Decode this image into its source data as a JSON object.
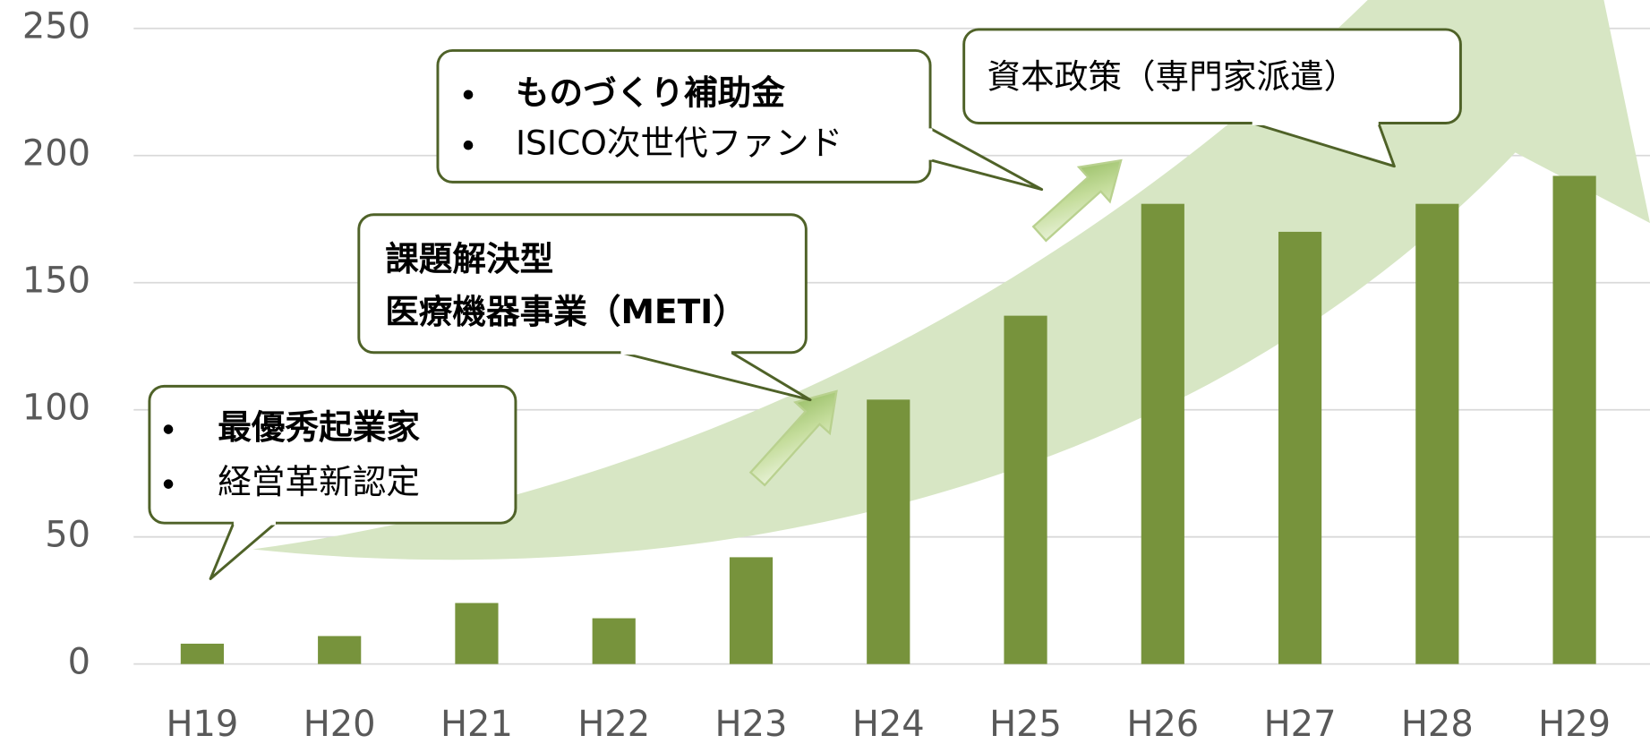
{
  "chart_data": {
    "type": "bar",
    "categories": [
      "H19",
      "H20",
      "H21",
      "H22",
      "H23",
      "H24",
      "H25",
      "H26",
      "H27",
      "H28",
      "H29"
    ],
    "values": [
      8,
      11,
      24,
      18,
      42,
      104,
      137,
      181,
      170,
      181,
      192
    ],
    "color": "#77933c",
    "ylim": [
      0,
      250
    ],
    "yticks": [
      0,
      50,
      100,
      150,
      200,
      250
    ],
    "grid": true,
    "annotations": [
      {
        "lines": [
          "最優秀起業家",
          "経営革新認定"
        ]
      },
      {
        "lines": [
          "課題解決型",
          "医療機器事業（METI）"
        ]
      },
      {
        "lines": [
          "ものづくり補助金",
          "ISICO次世代ファンド"
        ]
      },
      {
        "lines": [
          "資本政策（専門家派遣）"
        ]
      }
    ]
  }
}
